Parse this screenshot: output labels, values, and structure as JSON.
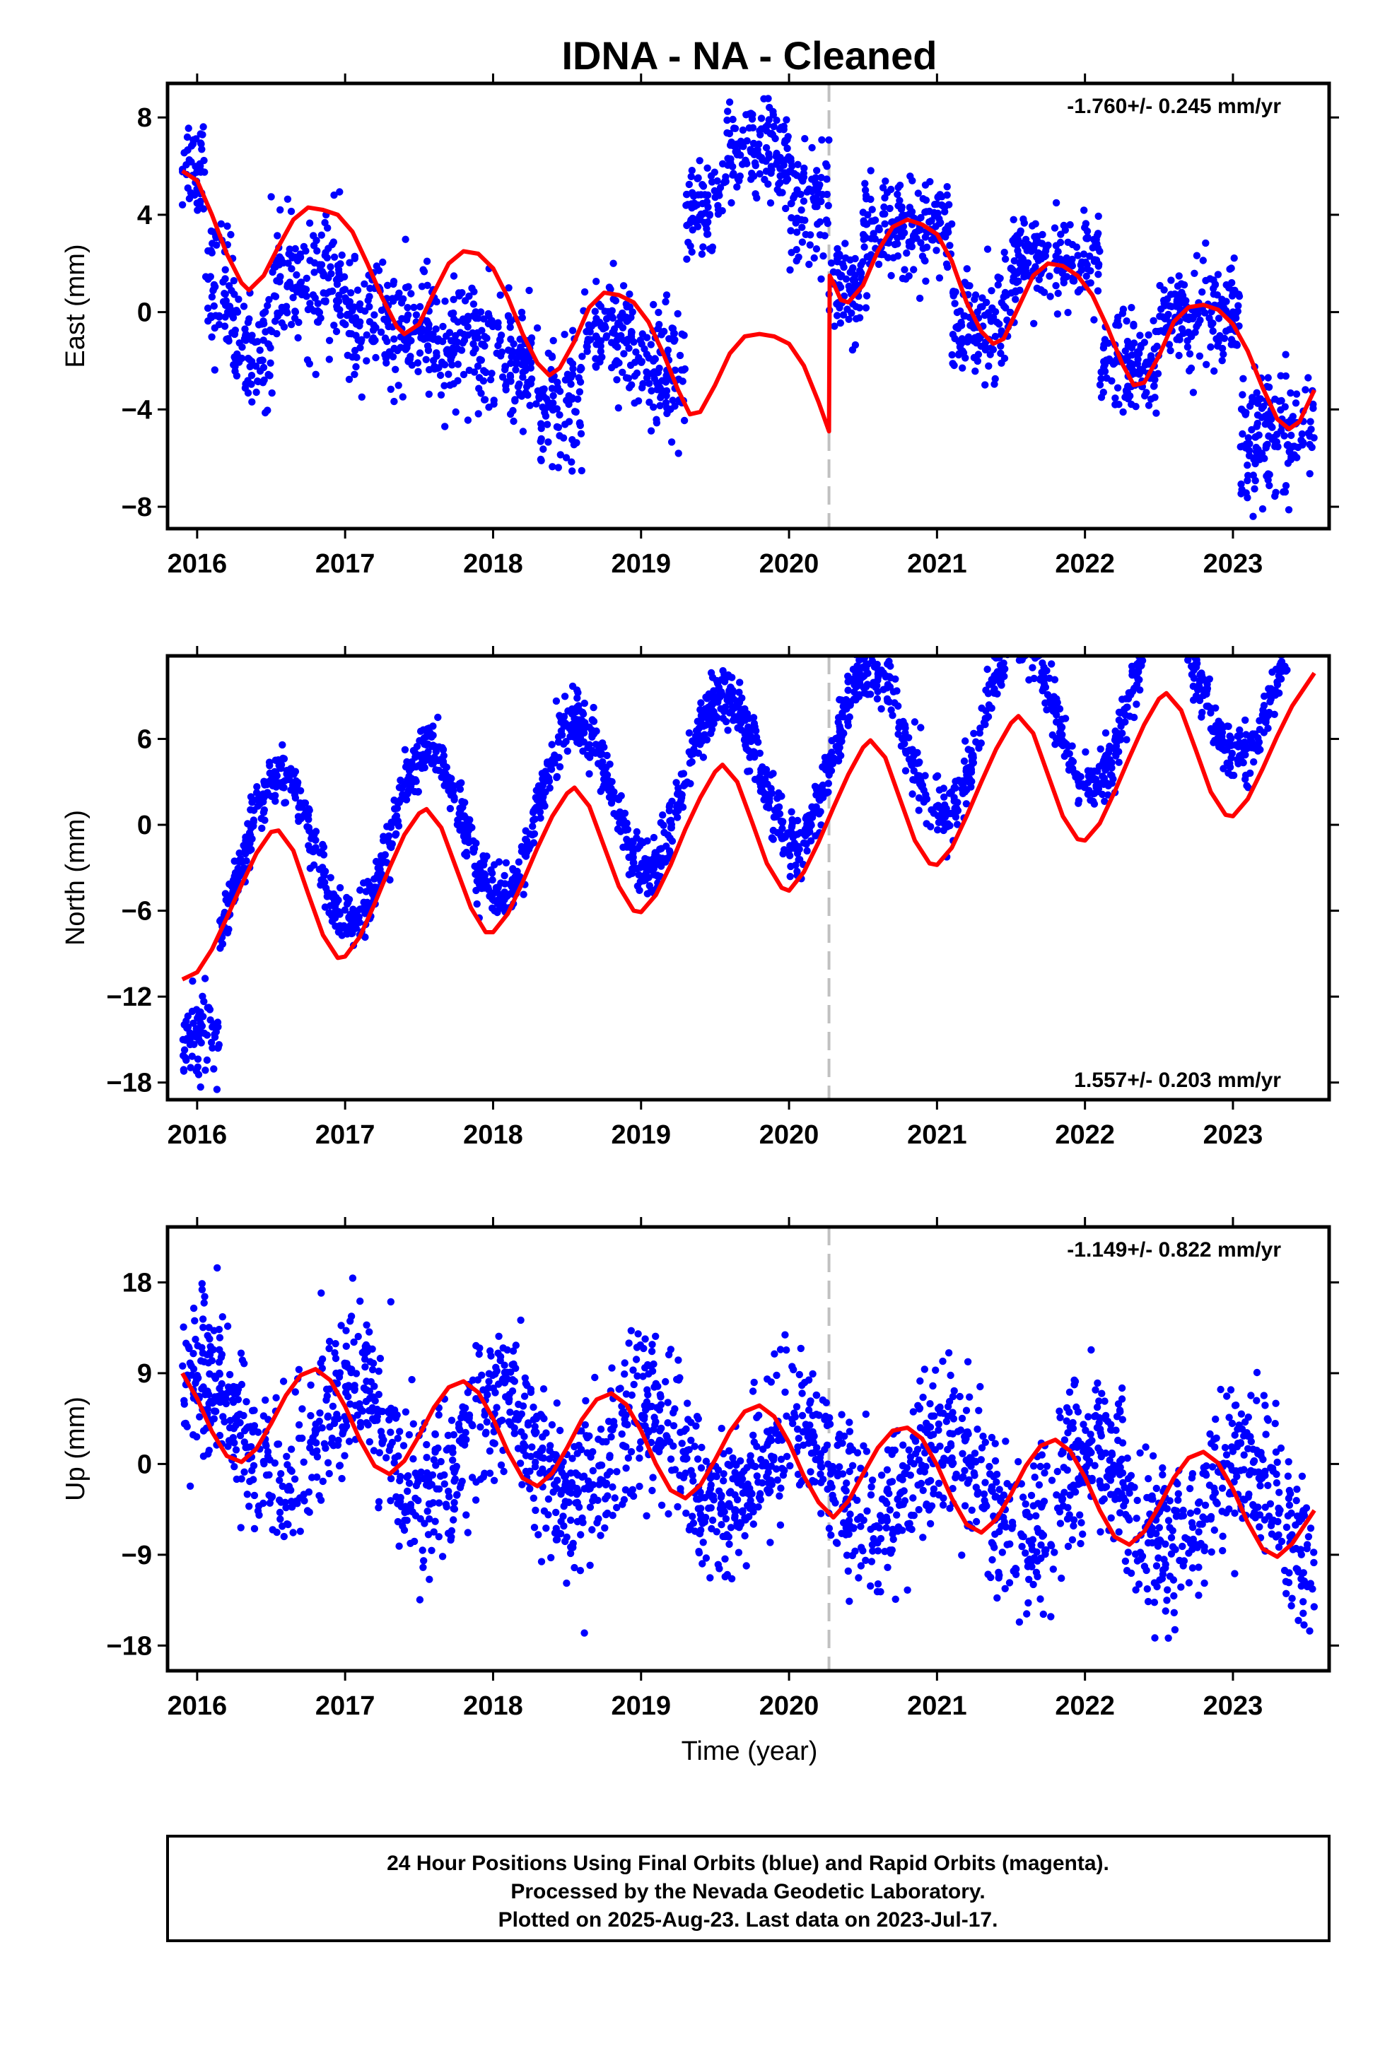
{
  "title": "IDNA  - NA - Cleaned",
  "xlabel": "Time (year)",
  "footer": {
    "line1": "24 Hour Positions Using Final Orbits (blue) and Rapid Orbits (magenta).",
    "line2": "Processed by the Nevada Geodetic Laboratory.",
    "line3": "Plotted on 2025-Aug-23. Last data on 2023-Jul-17."
  },
  "colors": {
    "points": "#0000ff",
    "model": "#ff0000",
    "event_line": "#c0c0c0",
    "frame": "#000000"
  },
  "chart_data": [
    {
      "type": "scatter",
      "id": "east",
      "ylabel": "East (mm)",
      "rate": "-1.760+/- 0.245 mm/yr",
      "rate_position": "top-right",
      "xlim": [
        2015.8,
        2023.65
      ],
      "ylim": [
        -8.9,
        9.4
      ],
      "yticks": [
        -8,
        -4,
        0,
        4,
        8
      ],
      "xticks": [
        2016,
        2017,
        2018,
        2019,
        2020,
        2021,
        2022,
        2023
      ],
      "event_line_x": 2020.27,
      "model_curve": [
        [
          2015.9,
          5.8
        ],
        [
          2016.0,
          5.4
        ],
        [
          2016.1,
          4.0
        ],
        [
          2016.2,
          2.4
        ],
        [
          2016.3,
          1.2
        ],
        [
          2016.35,
          0.9
        ],
        [
          2016.45,
          1.5
        ],
        [
          2016.55,
          2.7
        ],
        [
          2016.65,
          3.8
        ],
        [
          2016.75,
          4.3
        ],
        [
          2016.85,
          4.2
        ],
        [
          2016.95,
          4.0
        ],
        [
          2017.05,
          3.3
        ],
        [
          2017.15,
          2.0
        ],
        [
          2017.25,
          0.6
        ],
        [
          2017.35,
          -0.6
        ],
        [
          2017.4,
          -0.9
        ],
        [
          2017.5,
          -0.5
        ],
        [
          2017.6,
          0.8
        ],
        [
          2017.7,
          2.0
        ],
        [
          2017.8,
          2.5
        ],
        [
          2017.9,
          2.4
        ],
        [
          2018.0,
          1.8
        ],
        [
          2018.1,
          0.6
        ],
        [
          2018.2,
          -0.9
        ],
        [
          2018.3,
          -2.1
        ],
        [
          2018.38,
          -2.6
        ],
        [
          2018.45,
          -2.3
        ],
        [
          2018.55,
          -1.2
        ],
        [
          2018.65,
          0.2
        ],
        [
          2018.75,
          0.8
        ],
        [
          2018.85,
          0.7
        ],
        [
          2018.95,
          0.4
        ],
        [
          2019.05,
          -0.4
        ],
        [
          2019.15,
          -1.7
        ],
        [
          2019.25,
          -3.2
        ],
        [
          2019.33,
          -4.2
        ],
        [
          2019.4,
          -4.1
        ],
        [
          2019.5,
          -3.0
        ],
        [
          2019.6,
          -1.7
        ],
        [
          2019.7,
          -1.0
        ],
        [
          2019.8,
          -0.9
        ],
        [
          2019.9,
          -1.0
        ],
        [
          2020.0,
          -1.3
        ],
        [
          2020.1,
          -2.2
        ],
        [
          2020.2,
          -3.7
        ],
        [
          2020.27,
          -4.9
        ],
        [
          2020.275,
          1.5
        ],
        [
          2020.3,
          1.2
        ],
        [
          2020.35,
          0.5
        ],
        [
          2020.4,
          0.4
        ],
        [
          2020.5,
          1.1
        ],
        [
          2020.6,
          2.5
        ],
        [
          2020.7,
          3.5
        ],
        [
          2020.8,
          3.8
        ],
        [
          2020.9,
          3.6
        ],
        [
          2021.0,
          3.2
        ],
        [
          2021.1,
          2.1
        ],
        [
          2021.2,
          0.4
        ],
        [
          2021.3,
          -0.8
        ],
        [
          2021.38,
          -1.3
        ],
        [
          2021.45,
          -1.1
        ],
        [
          2021.55,
          0.2
        ],
        [
          2021.65,
          1.5
        ],
        [
          2021.75,
          2.0
        ],
        [
          2021.85,
          1.9
        ],
        [
          2021.95,
          1.5
        ],
        [
          2022.05,
          0.7
        ],
        [
          2022.15,
          -0.6
        ],
        [
          2022.25,
          -2.1
        ],
        [
          2022.33,
          -3.0
        ],
        [
          2022.4,
          -2.9
        ],
        [
          2022.5,
          -1.8
        ],
        [
          2022.6,
          -0.4
        ],
        [
          2022.7,
          0.2
        ],
        [
          2022.8,
          0.3
        ],
        [
          2022.9,
          0.1
        ],
        [
          2023.0,
          -0.5
        ],
        [
          2023.1,
          -1.6
        ],
        [
          2023.2,
          -3.1
        ],
        [
          2023.3,
          -4.4
        ],
        [
          2023.38,
          -4.8
        ],
        [
          2023.45,
          -4.5
        ],
        [
          2023.55,
          -3.2
        ]
      ],
      "series": [
        {
          "start": 2015.9,
          "end": 2016.05,
          "mean": 6.2,
          "amp": 0,
          "phase": 0,
          "spread": 1.1
        },
        {
          "start": 2016.05,
          "end": 2016.25,
          "mean": 1.0,
          "amp": 0,
          "phase": 0,
          "spread": 1.4
        },
        {
          "start": 2016.25,
          "end": 2016.5,
          "mean": -1.6,
          "amp": 0,
          "phase": 0,
          "spread": 1.1
        },
        {
          "start": 2016.5,
          "end": 2017.0,
          "mean": 1.2,
          "amp": 0,
          "phase": 0,
          "spread": 1.3
        },
        {
          "start": 2017.0,
          "end": 2017.35,
          "mean": -0.6,
          "amp": 0,
          "phase": 0,
          "spread": 1.2
        },
        {
          "start": 2017.35,
          "end": 2017.9,
          "mean": -1.0,
          "amp": 0,
          "phase": 0,
          "spread": 1.3
        },
        {
          "start": 2017.9,
          "end": 2018.3,
          "mean": -2.0,
          "amp": 0,
          "phase": 0,
          "spread": 1.2
        },
        {
          "start": 2018.3,
          "end": 2018.6,
          "mean": -3.8,
          "amp": 0,
          "phase": 0,
          "spread": 1.3
        },
        {
          "start": 2018.6,
          "end": 2018.95,
          "mean": -0.8,
          "amp": 0,
          "phase": 0,
          "spread": 1.1
        },
        {
          "start": 2018.95,
          "end": 2019.3,
          "mean": -2.4,
          "amp": 0,
          "phase": 0,
          "spread": 1.3
        },
        {
          "start": 2019.3,
          "end": 2019.55,
          "mean": 4.0,
          "amp": 0,
          "phase": 0,
          "spread": 1.0
        },
        {
          "start": 2019.55,
          "end": 2020.0,
          "mean": 6.5,
          "amp": 0,
          "phase": 0,
          "spread": 1.0
        },
        {
          "start": 2020.0,
          "end": 2020.27,
          "mean": 4.5,
          "amp": 0,
          "phase": 0,
          "spread": 1.2
        },
        {
          "start": 2020.27,
          "end": 2020.5,
          "mean": 0.8,
          "amp": 0,
          "phase": 0,
          "spread": 0.9
        },
        {
          "start": 2020.5,
          "end": 2021.1,
          "mean": 3.5,
          "amp": 0,
          "phase": 0,
          "spread": 1.0
        },
        {
          "start": 2021.1,
          "end": 2021.5,
          "mean": -0.4,
          "amp": 0,
          "phase": 0,
          "spread": 1.1
        },
        {
          "start": 2021.5,
          "end": 2022.1,
          "mean": 2.0,
          "amp": 0,
          "phase": 0,
          "spread": 1.0
        },
        {
          "start": 2022.1,
          "end": 2022.5,
          "mean": -2.2,
          "amp": 0,
          "phase": 0,
          "spread": 1.1
        },
        {
          "start": 2022.5,
          "end": 2023.05,
          "mean": -0.3,
          "amp": 0,
          "phase": 0,
          "spread": 1.0
        },
        {
          "start": 2023.05,
          "end": 2023.55,
          "mean": -5.0,
          "amp": 0,
          "phase": 0,
          "spread": 1.3
        }
      ]
    },
    {
      "type": "scatter",
      "id": "north",
      "ylabel": "North (mm)",
      "rate": "1.557+/- 0.203 mm/yr",
      "rate_position": "bottom-right",
      "xlim": [
        2015.8,
        2023.65
      ],
      "ylim": [
        -19.2,
        11.8
      ],
      "yticks": [
        -18,
        -12,
        -6,
        0,
        6
      ],
      "xticks": [
        2016,
        2017,
        2018,
        2019,
        2020,
        2021,
        2022,
        2023
      ],
      "event_line_x": 2020.27,
      "model_curve": [
        [
          2015.9,
          -10.8
        ],
        [
          2016.0,
          -10.3
        ],
        [
          2016.1,
          -8.7
        ],
        [
          2016.2,
          -6.5
        ],
        [
          2016.3,
          -4.2
        ],
        [
          2016.4,
          -2.0
        ],
        [
          2016.5,
          -0.5
        ],
        [
          2016.55,
          -0.4
        ],
        [
          2016.65,
          -1.8
        ],
        [
          2016.75,
          -4.8
        ],
        [
          2016.85,
          -7.7
        ],
        [
          2016.95,
          -9.3
        ],
        [
          2017.0,
          -9.2
        ],
        [
          2017.1,
          -7.8
        ],
        [
          2017.2,
          -5.5
        ],
        [
          2017.3,
          -3.0
        ],
        [
          2017.4,
          -0.7
        ],
        [
          2017.5,
          0.8
        ],
        [
          2017.55,
          1.1
        ],
        [
          2017.65,
          -0.2
        ],
        [
          2017.75,
          -3.0
        ],
        [
          2017.85,
          -5.8
        ],
        [
          2017.95,
          -7.5
        ],
        [
          2018.0,
          -7.5
        ],
        [
          2018.1,
          -6.2
        ],
        [
          2018.2,
          -4.0
        ],
        [
          2018.3,
          -1.6
        ],
        [
          2018.4,
          0.6
        ],
        [
          2018.5,
          2.2
        ],
        [
          2018.55,
          2.6
        ],
        [
          2018.65,
          1.3
        ],
        [
          2018.75,
          -1.5
        ],
        [
          2018.85,
          -4.3
        ],
        [
          2018.95,
          -6.0
        ],
        [
          2019.0,
          -6.1
        ],
        [
          2019.1,
          -4.9
        ],
        [
          2019.2,
          -2.8
        ],
        [
          2019.3,
          -0.3
        ],
        [
          2019.4,
          1.9
        ],
        [
          2019.5,
          3.7
        ],
        [
          2019.55,
          4.2
        ],
        [
          2019.65,
          3.0
        ],
        [
          2019.75,
          0.2
        ],
        [
          2019.85,
          -2.7
        ],
        [
          2019.95,
          -4.4
        ],
        [
          2020.0,
          -4.6
        ],
        [
          2020.1,
          -3.3
        ],
        [
          2020.2,
          -1.2
        ],
        [
          2020.3,
          1.2
        ],
        [
          2020.4,
          3.5
        ],
        [
          2020.5,
          5.4
        ],
        [
          2020.55,
          5.9
        ],
        [
          2020.65,
          4.7
        ],
        [
          2020.75,
          1.8
        ],
        [
          2020.85,
          -1.1
        ],
        [
          2020.95,
          -2.7
        ],
        [
          2021.0,
          -2.8
        ],
        [
          2021.1,
          -1.6
        ],
        [
          2021.2,
          0.6
        ],
        [
          2021.3,
          3.0
        ],
        [
          2021.4,
          5.3
        ],
        [
          2021.5,
          7.1
        ],
        [
          2021.55,
          7.6
        ],
        [
          2021.65,
          6.4
        ],
        [
          2021.75,
          3.5
        ],
        [
          2021.85,
          0.6
        ],
        [
          2021.95,
          -1.0
        ],
        [
          2022.0,
          -1.1
        ],
        [
          2022.1,
          0.1
        ],
        [
          2022.2,
          2.3
        ],
        [
          2022.3,
          4.7
        ],
        [
          2022.4,
          7.0
        ],
        [
          2022.5,
          8.8
        ],
        [
          2022.55,
          9.2
        ],
        [
          2022.65,
          8.0
        ],
        [
          2022.75,
          5.2
        ],
        [
          2022.85,
          2.3
        ],
        [
          2022.95,
          0.7
        ],
        [
          2023.0,
          0.6
        ],
        [
          2023.1,
          1.8
        ],
        [
          2023.2,
          3.9
        ],
        [
          2023.3,
          6.2
        ],
        [
          2023.4,
          8.3
        ],
        [
          2023.55,
          10.6
        ]
      ],
      "series": [
        {
          "start": 2015.9,
          "end": 2016.15,
          "mean": -14.5,
          "amp": 0,
          "phase": 0,
          "spread": 1.5
        },
        {
          "start": 2016.15,
          "end": 2023.55,
          "mean": -3.0,
          "trend": 1.9,
          "amp": 5.6,
          "phase": 0.3,
          "spread": 1.0
        }
      ]
    },
    {
      "type": "scatter",
      "id": "up",
      "ylabel": "Up (mm)",
      "rate": "-1.149+/- 0.822 mm/yr",
      "rate_position": "top-right",
      "xlim": [
        2015.8,
        2023.65
      ],
      "ylim": [
        -20.5,
        23.5
      ],
      "yticks": [
        -18,
        -9,
        0,
        9,
        18
      ],
      "xticks": [
        2016,
        2017,
        2018,
        2019,
        2020,
        2021,
        2022,
        2023
      ],
      "event_line_x": 2020.27,
      "model_curve": [
        [
          2015.9,
          9.0
        ],
        [
          2016.0,
          6.5
        ],
        [
          2016.1,
          3.2
        ],
        [
          2016.2,
          0.8
        ],
        [
          2016.3,
          0.2
        ],
        [
          2016.4,
          1.5
        ],
        [
          2016.5,
          4.0
        ],
        [
          2016.6,
          6.8
        ],
        [
          2016.7,
          8.8
        ],
        [
          2016.8,
          9.4
        ],
        [
          2016.9,
          8.3
        ],
        [
          2017.0,
          5.7
        ],
        [
          2017.1,
          2.4
        ],
        [
          2017.2,
          -0.2
        ],
        [
          2017.3,
          -1.0
        ],
        [
          2017.4,
          0.3
        ],
        [
          2017.5,
          2.8
        ],
        [
          2017.6,
          5.6
        ],
        [
          2017.7,
          7.6
        ],
        [
          2017.8,
          8.2
        ],
        [
          2017.9,
          7.1
        ],
        [
          2018.0,
          4.5
        ],
        [
          2018.1,
          1.2
        ],
        [
          2018.2,
          -1.4
        ],
        [
          2018.3,
          -2.2
        ],
        [
          2018.4,
          -0.9
        ],
        [
          2018.5,
          1.6
        ],
        [
          2018.6,
          4.4
        ],
        [
          2018.7,
          6.4
        ],
        [
          2018.8,
          7.0
        ],
        [
          2018.9,
          5.9
        ],
        [
          2019.0,
          3.3
        ],
        [
          2019.1,
          0.0
        ],
        [
          2019.2,
          -2.6
        ],
        [
          2019.3,
          -3.4
        ],
        [
          2019.4,
          -2.1
        ],
        [
          2019.5,
          0.4
        ],
        [
          2019.6,
          3.2
        ],
        [
          2019.7,
          5.2
        ],
        [
          2019.8,
          5.8
        ],
        [
          2019.9,
          4.7
        ],
        [
          2020.0,
          2.1
        ],
        [
          2020.1,
          -1.2
        ],
        [
          2020.2,
          -3.8
        ],
        [
          2020.3,
          -5.3
        ],
        [
          2020.4,
          -3.7
        ],
        [
          2020.5,
          -1.0
        ],
        [
          2020.6,
          1.6
        ],
        [
          2020.7,
          3.3
        ],
        [
          2020.8,
          3.6
        ],
        [
          2020.9,
          2.5
        ],
        [
          2021.0,
          -0.1
        ],
        [
          2021.1,
          -3.4
        ],
        [
          2021.2,
          -6.0
        ],
        [
          2021.3,
          -6.8
        ],
        [
          2021.4,
          -5.5
        ],
        [
          2021.5,
          -3.0
        ],
        [
          2021.6,
          -0.2
        ],
        [
          2021.7,
          1.8
        ],
        [
          2021.8,
          2.4
        ],
        [
          2021.9,
          1.3
        ],
        [
          2022.0,
          -1.3
        ],
        [
          2022.1,
          -4.6
        ],
        [
          2022.2,
          -7.2
        ],
        [
          2022.3,
          -8.0
        ],
        [
          2022.4,
          -6.7
        ],
        [
          2022.5,
          -4.2
        ],
        [
          2022.6,
          -1.4
        ],
        [
          2022.7,
          0.6
        ],
        [
          2022.8,
          1.2
        ],
        [
          2022.9,
          0.1
        ],
        [
          2023.0,
          -2.5
        ],
        [
          2023.1,
          -5.8
        ],
        [
          2023.2,
          -8.4
        ],
        [
          2023.3,
          -9.2
        ],
        [
          2023.4,
          -7.9
        ],
        [
          2023.55,
          -4.6
        ]
      ],
      "series": [
        {
          "start": 2015.9,
          "end": 2023.55,
          "mean": 4.0,
          "trend": -1.15,
          "amp": 4.8,
          "phase": 0.8,
          "spread": 3.9
        }
      ]
    }
  ]
}
